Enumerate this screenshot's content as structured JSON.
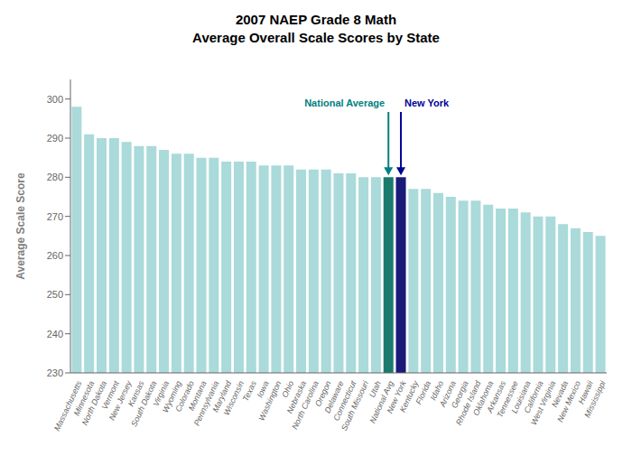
{
  "chart_data": {
    "type": "bar",
    "title": "2007 NAEP Grade 8 Math",
    "subtitle": "Average Overall Scale Scores by State",
    "ylabel": "Average Scale Score",
    "categories": [
      "Massachusetts",
      "Minnesota",
      "North Dakota",
      "Vermont",
      "New Jersey",
      "Kansas",
      "South Dakota",
      "Virginia",
      "Wyoming",
      "Colorado",
      "Montana",
      "Pennsylvania",
      "Maryland",
      "Wisconsin",
      "Texas",
      "Iowa",
      "Washington",
      "Ohio",
      "Nebraska",
      "North Carolina",
      "Oregon",
      "Delaware",
      "Connecticut",
      "South Missouri",
      "Utah",
      "National Avg",
      "New York",
      "Kentucky",
      "Florida",
      "Idaho",
      "Arizona",
      "Georgia",
      "Rhode Island",
      "Oklahoma",
      "Arkansas",
      "Tennessee",
      "Louisiana",
      "California",
      "West Virginia",
      "Nevada",
      "New Mexico",
      "Hawaii",
      "Mississippi"
    ],
    "values": [
      298,
      291,
      290,
      290,
      289,
      288,
      288,
      287,
      286,
      286,
      285,
      285,
      284,
      284,
      284,
      283,
      283,
      283,
      282,
      282,
      282,
      281,
      281,
      280,
      280,
      280,
      280,
      277,
      277,
      276,
      275,
      274,
      274,
      273,
      272,
      272,
      271,
      270,
      270,
      268,
      267,
      266,
      265
    ],
    "colors": [
      "#aadada",
      "#aadada",
      "#aadada",
      "#aadada",
      "#aadada",
      "#aadada",
      "#aadada",
      "#aadada",
      "#aadada",
      "#aadada",
      "#aadada",
      "#aadada",
      "#aadada",
      "#aadada",
      "#aadada",
      "#aadada",
      "#aadada",
      "#aadada",
      "#aadada",
      "#aadada",
      "#aadada",
      "#aadada",
      "#aadada",
      "#aadada",
      "#aadada",
      "#1a7a6e",
      "#1a1a7a",
      "#aadada",
      "#aadada",
      "#aadada",
      "#aadada",
      "#aadada",
      "#aadada",
      "#aadada",
      "#aadada",
      "#aadada",
      "#aadada",
      "#aadada",
      "#aadada",
      "#aadada",
      "#aadada",
      "#aadada",
      "#aadada"
    ],
    "ylim": [
      230,
      305
    ],
    "yticks": [
      230,
      240,
      250,
      260,
      270,
      280,
      290,
      300
    ],
    "grid": false,
    "annotations": [
      {
        "text": "National Average",
        "x": "National Avg",
        "color": "#008080"
      },
      {
        "text": "New York",
        "x": "New York",
        "color": "#000099"
      }
    ]
  }
}
